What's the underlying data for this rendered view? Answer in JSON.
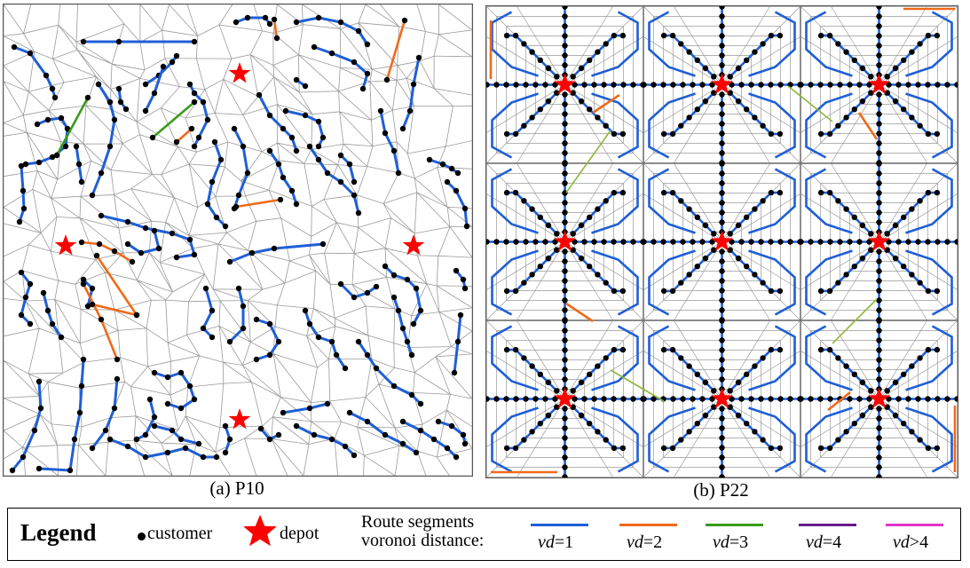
{
  "captions": {
    "a": "(a) P10",
    "b": "(b) P22"
  },
  "legend": {
    "title": "Legend",
    "customer": "customer",
    "depot": "depot",
    "route_line1": "Route segments",
    "route_line2": "voronoi distance:",
    "items": [
      {
        "var": "vd",
        "op": "=1",
        "color": "#1f5fd6"
      },
      {
        "var": "vd",
        "op": "=2",
        "color": "#f06a1a"
      },
      {
        "var": "vd",
        "op": "=3",
        "color": "#3a9a1c"
      },
      {
        "var": "vd",
        "op": "=4",
        "color": "#6a1a8a"
      },
      {
        "var": "vd",
        "op": ">4",
        "color": "#e633c8"
      }
    ]
  },
  "colors": {
    "customer": "#000000",
    "depot": "#ff0000",
    "voronoi_edge": "#9a9a9a",
    "vd1": "#1f5fd6",
    "vd2": "#f06a1a",
    "vd3": "#3a9a1c",
    "vd3_light": "#8fb83a"
  }
}
